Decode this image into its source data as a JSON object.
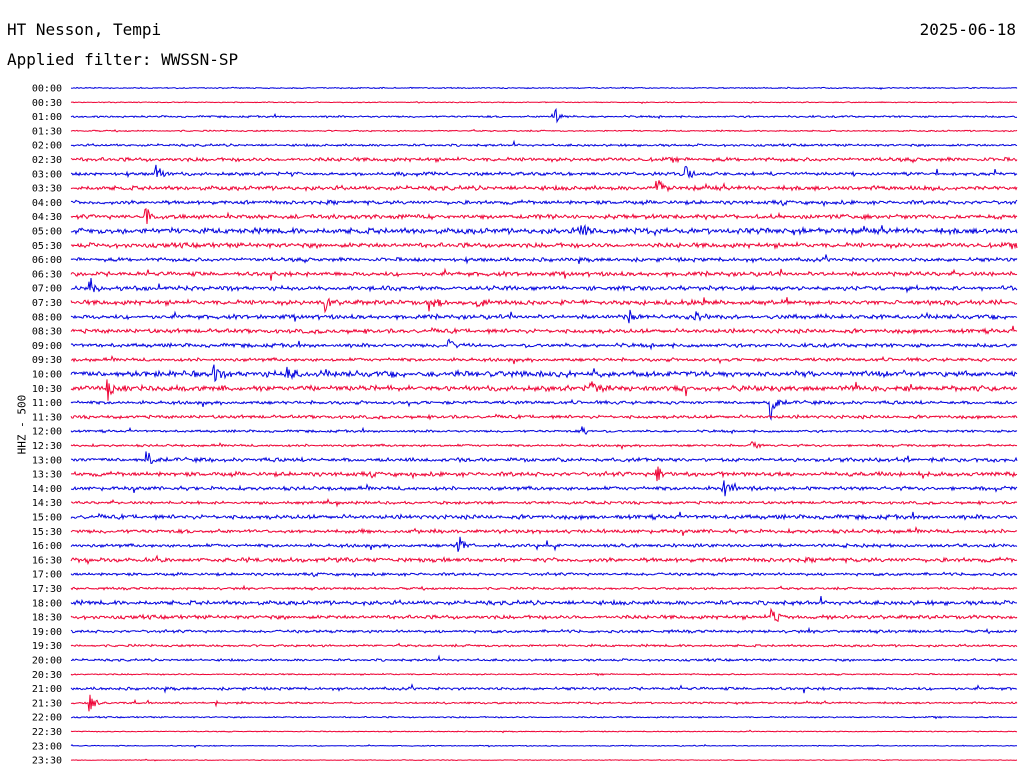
{
  "header": {
    "station": "HT Nesson, Tempi",
    "date": "2025-06-18",
    "filter": "Applied filter: WWSSN-SP"
  },
  "chart_data": {
    "type": "helicorder",
    "title": "HT Nesson, Tempi",
    "channel_label": "HHZ - 500",
    "colors": [
      "#0000dd",
      "#ee0033"
    ],
    "rows": [
      "00:00",
      "00:30",
      "01:00",
      "01:30",
      "02:00",
      "02:30",
      "03:00",
      "03:30",
      "04:00",
      "04:30",
      "05:00",
      "05:30",
      "06:00",
      "06:30",
      "07:00",
      "07:30",
      "08:00",
      "08:30",
      "09:00",
      "09:30",
      "10:00",
      "10:30",
      "11:00",
      "11:30",
      "12:00",
      "12:30",
      "13:00",
      "13:30",
      "14:00",
      "14:30",
      "15:00",
      "15:30",
      "16:00",
      "16:30",
      "17:00",
      "17:30",
      "18:00",
      "18:30",
      "19:00",
      "19:30",
      "20:00",
      "20:30",
      "21:00",
      "21:30",
      "22:00",
      "22:30",
      "23:00",
      "23:30"
    ],
    "noise": [
      0.5,
      0.4,
      0.8,
      0.6,
      1.0,
      1.6,
      1.4,
      1.8,
      1.6,
      1.8,
      2.4,
      2.0,
      1.6,
      1.8,
      1.8,
      2.0,
      1.8,
      1.8,
      1.6,
      1.4,
      2.4,
      2.2,
      1.4,
      1.4,
      1.0,
      1.0,
      1.6,
      1.8,
      1.6,
      1.2,
      1.8,
      1.6,
      1.4,
      1.8,
      1.2,
      1.0,
      1.8,
      1.6,
      1.2,
      1.0,
      1.0,
      0.6,
      1.2,
      0.8,
      0.6,
      0.4,
      0.4,
      0.3
    ],
    "events": [
      {
        "row": 2,
        "x": 0.51,
        "amp": 15
      },
      {
        "row": 6,
        "x": 0.09,
        "amp": 14
      },
      {
        "row": 6,
        "x": 0.65,
        "amp": 11
      },
      {
        "row": 7,
        "x": 0.62,
        "amp": 16
      },
      {
        "row": 9,
        "x": 0.08,
        "amp": 15
      },
      {
        "row": 10,
        "x": 0.54,
        "amp": 12
      },
      {
        "row": 14,
        "x": 0.02,
        "amp": 14
      },
      {
        "row": 15,
        "x": 0.27,
        "amp": 9
      },
      {
        "row": 15,
        "x": 0.38,
        "amp": 12
      },
      {
        "row": 15,
        "x": 0.43,
        "amp": 10
      },
      {
        "row": 16,
        "x": 0.59,
        "amp": 10
      },
      {
        "row": 16,
        "x": 0.66,
        "amp": 10
      },
      {
        "row": 18,
        "x": 0.4,
        "amp": 9
      },
      {
        "row": 20,
        "x": 0.15,
        "amp": 11
      },
      {
        "row": 20,
        "x": 0.23,
        "amp": 13
      },
      {
        "row": 21,
        "x": 0.04,
        "amp": 13
      },
      {
        "row": 21,
        "x": 0.55,
        "amp": 9
      },
      {
        "row": 22,
        "x": 0.74,
        "amp": 18
      },
      {
        "row": 24,
        "x": 0.54,
        "amp": 6
      },
      {
        "row": 25,
        "x": 0.72,
        "amp": 6
      },
      {
        "row": 26,
        "x": 0.08,
        "amp": 9
      },
      {
        "row": 27,
        "x": 0.62,
        "amp": 14
      },
      {
        "row": 28,
        "x": 0.69,
        "amp": 15
      },
      {
        "row": 32,
        "x": 0.41,
        "amp": 12
      },
      {
        "row": 37,
        "x": 0.74,
        "amp": 12
      },
      {
        "row": 43,
        "x": 0.02,
        "amp": 12
      }
    ]
  }
}
